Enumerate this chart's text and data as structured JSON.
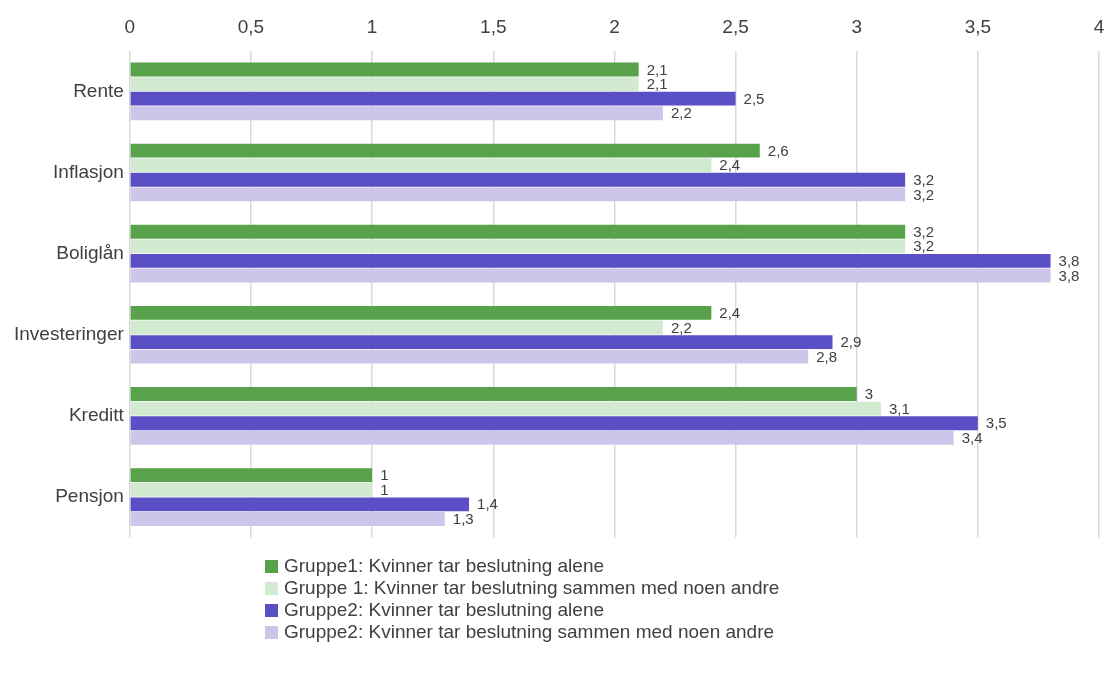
{
  "chart_data": {
    "type": "bar",
    "orientation": "horizontal",
    "categories": [
      "Rente",
      "Inflasjon",
      "Boliglån",
      "Investeringer",
      "Kreditt",
      "Pensjon"
    ],
    "series": [
      {
        "name": "Gruppe1: Kvinner tar beslutning alene",
        "color": "#58a24c",
        "values": [
          2.1,
          2.6,
          3.2,
          2.4,
          3,
          1
        ],
        "value_labels": [
          "2,1",
          "2,6",
          "3,2",
          "2,4",
          "3",
          "1"
        ]
      },
      {
        "name": "Gruppe 1: Kvinner tar beslutning sammen med noen andre",
        "color": "#d2ead0",
        "values": [
          2.1,
          2.4,
          3.2,
          2.2,
          3.1,
          1
        ],
        "value_labels": [
          "2,1",
          "2,4",
          "3,2",
          "2,2",
          "3,1",
          "1"
        ]
      },
      {
        "name": "Gruppe2: Kvinner tar beslutning alene",
        "color": "#5b4fc6",
        "values": [
          2.5,
          3.2,
          3.8,
          2.9,
          3.5,
          1.4
        ],
        "value_labels": [
          "2,5",
          "3,2",
          "3,8",
          "2,9",
          "3,5",
          "1,4"
        ]
      },
      {
        "name": "Gruppe2: Kvinner tar beslutning sammen med noen andre",
        "color": "#cdc6ea",
        "values": [
          2.2,
          3.2,
          3.8,
          2.8,
          3.4,
          1.3
        ],
        "value_labels": [
          "2,2",
          "3,2",
          "3,8",
          "2,8",
          "3,4",
          "1,3"
        ]
      }
    ],
    "xlim": [
      0,
      4
    ],
    "xticks": [
      0,
      {
        "value": 0.5,
        "label": "0,5"
      },
      1,
      {
        "value": 1.5,
        "label": "1,5"
      },
      2,
      {
        "value": 2.5,
        "label": "2,5"
      },
      3,
      {
        "value": 3.5,
        "label": "3,5"
      },
      4
    ],
    "grid": "x",
    "legend": "bottom"
  }
}
